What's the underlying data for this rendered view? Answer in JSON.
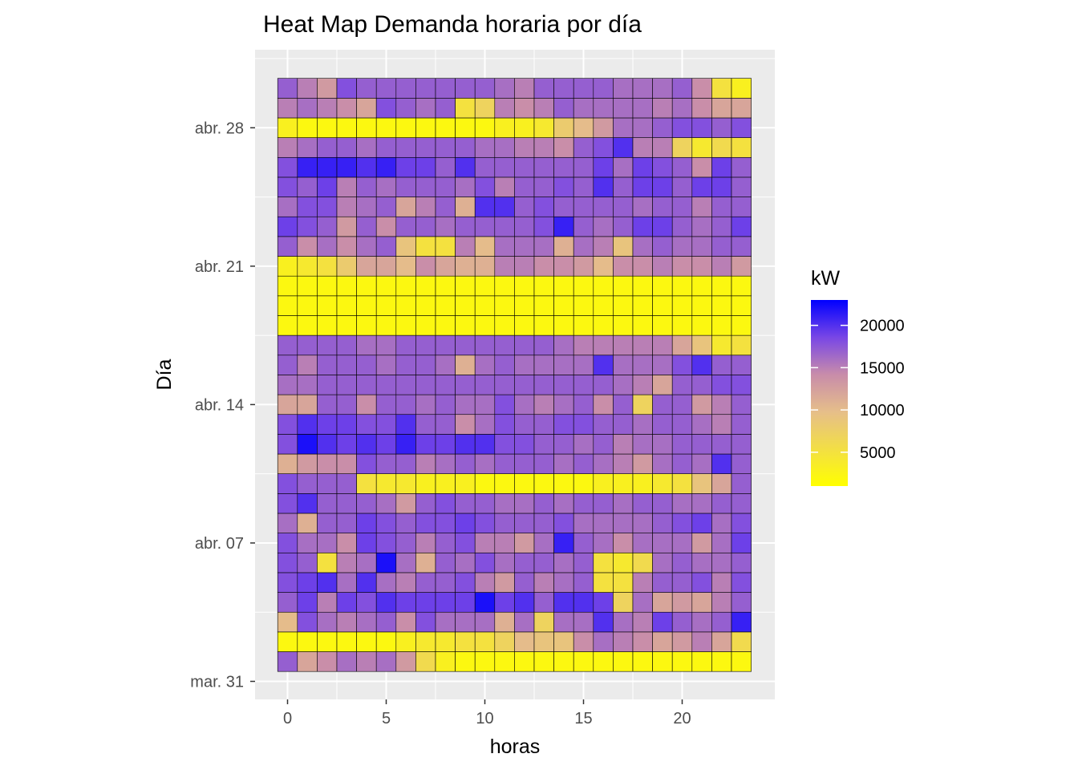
{
  "chart_data": {
    "type": "heatmap",
    "title": "Heat Map Demanda horaria por día",
    "xlabel": "horas",
    "ylabel": "Día",
    "x_ticks": [
      "0",
      "5",
      "10",
      "15",
      "20"
    ],
    "x_tick_values": [
      0,
      5,
      10,
      15,
      20
    ],
    "y_ticks": [
      "mar. 31",
      "abr. 07",
      "abr. 14",
      "abr. 21",
      "abr. 28"
    ],
    "y_tick_values": [
      0,
      7,
      14,
      21,
      28
    ],
    "x": [
      0,
      1,
      2,
      3,
      4,
      5,
      6,
      7,
      8,
      9,
      10,
      11,
      12,
      13,
      14,
      15,
      16,
      17,
      18,
      19,
      20,
      21,
      22,
      23
    ],
    "y_start": 1,
    "y_end": 30,
    "grid": true,
    "legend": {
      "title": "kW",
      "labels": [
        "20000",
        "15000",
        "10000",
        "5000"
      ],
      "ticks": [
        20000,
        15000,
        10000,
        5000
      ],
      "min": 1000,
      "max": 23000,
      "placement": "right"
    },
    "colors": {
      "low": "#FFFF00",
      "mid": "#D2A0A0",
      "high": "#0000FF",
      "panel": "#EBEBEB",
      "grid": "#FFFFFF",
      "tile_border": "#000000"
    },
    "rows_values_kW_by_day_bottom_to_top": [
      [
        17000,
        12000,
        14000,
        16000,
        15000,
        16000,
        13000,
        6000,
        3000,
        2000,
        2000,
        2000,
        2000,
        2000,
        2000,
        2000,
        2000,
        2000,
        2000,
        2000,
        2000,
        2000,
        2000,
        2000
      ],
      [
        2000,
        2000,
        2000,
        2000,
        2000,
        2000,
        3000,
        4000,
        4000,
        5000,
        5000,
        7000,
        10000,
        9000,
        9000,
        14000,
        16000,
        15000,
        14000,
        12000,
        13000,
        15000,
        12000,
        6000
      ],
      [
        10000,
        18000,
        16000,
        15000,
        16000,
        17000,
        14000,
        18000,
        16000,
        16000,
        16000,
        11000,
        16000,
        7000,
        16000,
        16000,
        20000,
        16000,
        15000,
        19000,
        17000,
        16000,
        17000,
        21000
      ],
      [
        17000,
        19000,
        15000,
        19000,
        18000,
        20000,
        19000,
        19000,
        19000,
        19000,
        22000,
        19000,
        20000,
        17000,
        20000,
        20000,
        19000,
        7000,
        16000,
        12000,
        13000,
        12000,
        15000,
        17000
      ],
      [
        18000,
        19000,
        20000,
        16000,
        20000,
        16000,
        15000,
        17000,
        17000,
        18000,
        15000,
        13000,
        17000,
        15000,
        16000,
        17000,
        5000,
        5000,
        15000,
        17000,
        17000,
        18000,
        15000,
        18000
      ],
      [
        18000,
        17000,
        5000,
        15000,
        16000,
        22000,
        16000,
        11000,
        17000,
        16000,
        18000,
        16000,
        17000,
        17000,
        16000,
        17000,
        5000,
        4000,
        6000,
        16000,
        17000,
        16000,
        16000,
        17000
      ],
      [
        18000,
        16000,
        16000,
        14000,
        19000,
        18000,
        17000,
        15000,
        17000,
        18000,
        15000,
        15000,
        13000,
        16000,
        21000,
        17000,
        16000,
        14000,
        16000,
        16000,
        16000,
        13000,
        16000,
        19000
      ],
      [
        16000,
        11000,
        17000,
        17000,
        19000,
        18000,
        17000,
        18000,
        18000,
        19000,
        18000,
        17000,
        17000,
        17000,
        18000,
        16000,
        16000,
        16000,
        16000,
        17000,
        18000,
        19000,
        16000,
        18000
      ],
      [
        18000,
        20000,
        17000,
        17000,
        17000,
        16000,
        13000,
        17000,
        18000,
        17000,
        17000,
        16000,
        16000,
        17000,
        16000,
        17000,
        17000,
        16000,
        17000,
        17000,
        16000,
        16000,
        17000,
        17000
      ],
      [
        18000,
        17000,
        17000,
        17000,
        5000,
        4000,
        4000,
        3000,
        3000,
        3000,
        2000,
        2000,
        2000,
        2000,
        2000,
        2000,
        3000,
        3000,
        3000,
        4000,
        5000,
        9000,
        12000,
        17000
      ],
      [
        11000,
        13000,
        14000,
        14000,
        18000,
        17000,
        17000,
        15000,
        16000,
        17000,
        16000,
        17000,
        17000,
        17000,
        16000,
        17000,
        16000,
        15000,
        13000,
        16000,
        17000,
        16000,
        20000,
        17000
      ],
      [
        18000,
        22000,
        20000,
        19000,
        20000,
        19000,
        21000,
        19000,
        19000,
        20000,
        20000,
        18000,
        18000,
        17000,
        17000,
        16000,
        17000,
        15000,
        16000,
        16000,
        17000,
        17000,
        17000,
        17000
      ],
      [
        18000,
        20000,
        19000,
        19000,
        18000,
        18000,
        20000,
        17000,
        17000,
        14000,
        16000,
        18000,
        17000,
        17000,
        18000,
        18000,
        17000,
        17000,
        16000,
        17000,
        17000,
        16000,
        15000,
        17000
      ],
      [
        12000,
        12000,
        17000,
        17000,
        14000,
        17000,
        17000,
        16000,
        17000,
        16000,
        16000,
        18000,
        16000,
        15000,
        16000,
        17000,
        14000,
        17000,
        7000,
        17000,
        17000,
        13000,
        15000,
        17000
      ],
      [
        16000,
        16000,
        17000,
        17000,
        17000,
        17000,
        17000,
        17000,
        17000,
        17000,
        17000,
        17000,
        17000,
        17000,
        17000,
        17000,
        17000,
        16000,
        15000,
        12000,
        17000,
        17000,
        18000,
        18000
      ],
      [
        17000,
        15000,
        17000,
        17000,
        17000,
        16000,
        17000,
        17000,
        16000,
        11000,
        16000,
        17000,
        16000,
        16000,
        16000,
        16000,
        20000,
        16000,
        16000,
        16000,
        18000,
        20000,
        17000,
        17000
      ],
      [
        17000,
        17000,
        17000,
        17000,
        16000,
        16000,
        17000,
        17000,
        17000,
        17000,
        17000,
        17000,
        17000,
        17000,
        16000,
        15000,
        15000,
        15000,
        15000,
        15000,
        12000,
        9000,
        4000,
        5000
      ],
      [
        2000,
        2000,
        2000,
        2000,
        2000,
        2000,
        2000,
        2000,
        2000,
        2000,
        2000,
        2000,
        2000,
        2000,
        2000,
        2000,
        2000,
        2000,
        2000,
        2000,
        2000,
        2000,
        2000,
        2000
      ],
      [
        2000,
        2000,
        2000,
        2000,
        2000,
        2000,
        2000,
        2000,
        2000,
        2000,
        2000,
        2000,
        2000,
        2000,
        2000,
        2000,
        2000,
        2000,
        2000,
        2000,
        2000,
        2000,
        2000,
        2000
      ],
      [
        2000,
        2000,
        2000,
        2000,
        2000,
        2000,
        2000,
        2000,
        2000,
        2000,
        2000,
        2000,
        2000,
        2000,
        2000,
        2000,
        2000,
        2000,
        2000,
        2000,
        2000,
        2000,
        2000,
        2000
      ],
      [
        3000,
        4000,
        5000,
        8000,
        12000,
        12000,
        10000,
        14000,
        12000,
        11000,
        11000,
        15000,
        15000,
        14000,
        14000,
        13000,
        10000,
        14000,
        14000,
        15000,
        14000,
        14000,
        15000,
        13000
      ],
      [
        17000,
        14000,
        16000,
        14000,
        16000,
        17000,
        9000,
        5000,
        5000,
        15000,
        10000,
        16000,
        16000,
        16000,
        11000,
        16000,
        15000,
        9000,
        16000,
        17000,
        16000,
        16000,
        17000,
        17000
      ],
      [
        19000,
        18000,
        17000,
        13000,
        17000,
        14000,
        17000,
        17000,
        16000,
        17000,
        17000,
        17000,
        17000,
        18000,
        21000,
        17000,
        16000,
        17000,
        19000,
        19000,
        17000,
        16000,
        17000,
        19000
      ],
      [
        16000,
        18000,
        18000,
        15000,
        16000,
        17000,
        12000,
        15000,
        17000,
        11000,
        20000,
        20000,
        17000,
        18000,
        17000,
        17000,
        17000,
        17000,
        16000,
        17000,
        17000,
        15000,
        17000,
        17000
      ],
      [
        18000,
        17000,
        19000,
        15000,
        17000,
        16000,
        17000,
        17000,
        17000,
        16000,
        18000,
        15000,
        17000,
        17000,
        18000,
        17000,
        20000,
        17000,
        19000,
        19000,
        17000,
        19000,
        19000,
        17000
      ],
      [
        18000,
        21000,
        21000,
        21000,
        20000,
        21000,
        19000,
        19000,
        17000,
        20000,
        17000,
        17000,
        17000,
        17000,
        17000,
        17000,
        19000,
        16000,
        19000,
        18000,
        17000,
        14000,
        19000,
        17000
      ],
      [
        15000,
        16000,
        17000,
        17000,
        16000,
        17000,
        17000,
        17000,
        17000,
        17000,
        16000,
        16000,
        15000,
        15000,
        14000,
        17000,
        18000,
        20000,
        15000,
        15000,
        7000,
        4000,
        6000,
        5000
      ],
      [
        3000,
        2000,
        2000,
        2000,
        2000,
        2000,
        2000,
        2000,
        2000,
        2000,
        2000,
        3000,
        3000,
        4000,
        8000,
        10000,
        13000,
        16000,
        16000,
        17000,
        18000,
        18000,
        17000,
        18000
      ],
      [
        15000,
        16000,
        15000,
        14000,
        12000,
        18000,
        17000,
        16000,
        17000,
        5000,
        7000,
        15000,
        14000,
        15000,
        17000,
        16000,
        16000,
        16000,
        16000,
        15000,
        16000,
        14000,
        12000,
        12000
      ],
      [
        17000,
        15000,
        13000,
        18000,
        17000,
        17000,
        17000,
        17000,
        17000,
        17000,
        17000,
        16000,
        15000,
        17000,
        17000,
        17000,
        17000,
        16000,
        16000,
        16000,
        17000,
        14000,
        5000,
        3000
      ]
    ]
  }
}
